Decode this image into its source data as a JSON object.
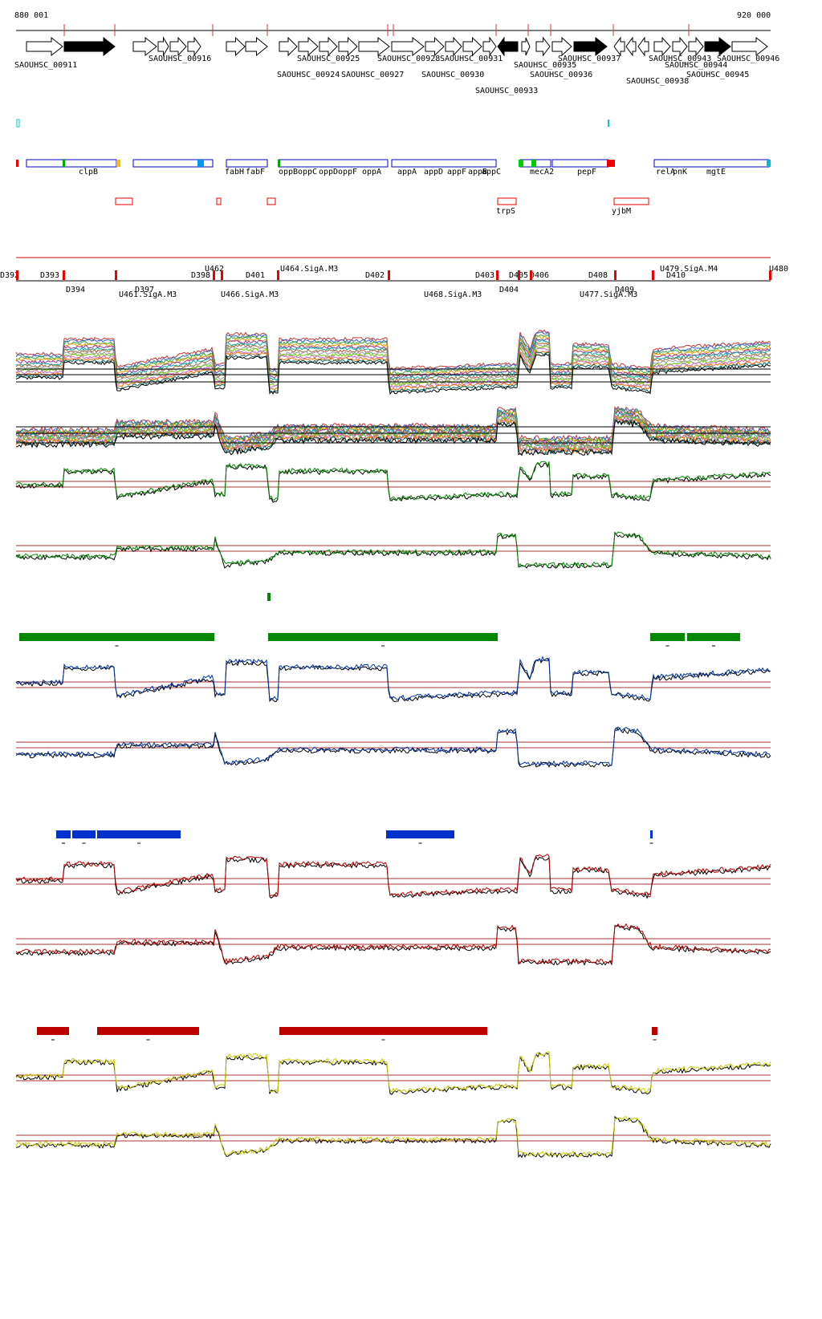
{
  "ruler": {
    "start": "880 001",
    "end": "920 000"
  },
  "genes": [
    "SAOUHSC_00911",
    "SAOUHSC_00916",
    "SAOUHSC_00925",
    "SAOUHSC_00928",
    "SAOUHSC_00931",
    "SAOUHSC_00937",
    "SAOUHSC_00943",
    "SAOUHSC_00946",
    "SAOUHSC_00935",
    "SAOUHSC_00944",
    "SAOUHSC_00924",
    "SAOUHSC_00927",
    "SAOUHSC_00930",
    "SAOUHSC_00936",
    "SAOUHSC_00945",
    "SAOUHSC_00938",
    "SAOUHSC_00933"
  ],
  "gene_names": [
    "clpB",
    "fabH",
    "fabF",
    "oppB",
    "oppC",
    "oppD",
    "oppF",
    "oppA",
    "appA",
    "appD",
    "appF",
    "appB",
    "appC",
    "mecA2",
    "pepF",
    "relA",
    "pnK",
    "mgtE",
    "trpS",
    "yjbM"
  ],
  "regions": [
    "D392",
    "D393",
    "D398",
    "D401",
    "D402",
    "D403",
    "D405",
    "D406",
    "D408",
    "D410",
    "U480",
    "U462",
    "U464.SigA.M3",
    "U479.SigA.M4",
    "D394",
    "D397",
    "D404",
    "D409",
    "U461.SigA.M3",
    "U466.SigA.M3",
    "U468.SigA.M3",
    "U477.SigA.M3"
  ]
}
